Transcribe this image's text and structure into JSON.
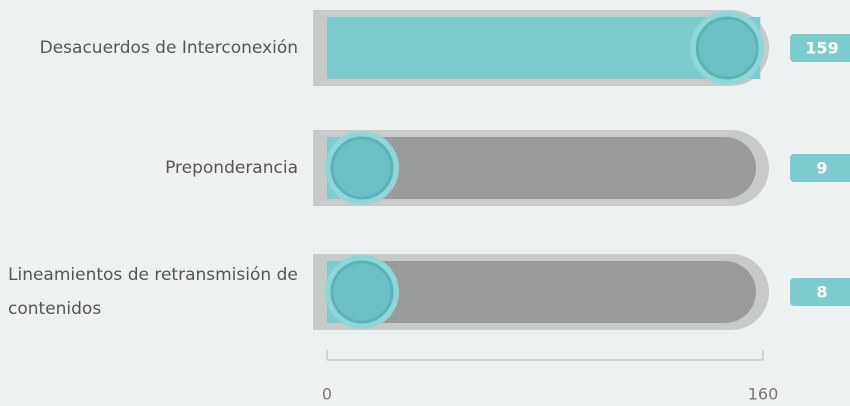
{
  "chart_data": {
    "type": "bar",
    "orientation": "horizontal",
    "categories": [
      "Desacuerdos de Interconexión",
      "Preponderancia",
      "Lineamientos de retransmisión de contenidos"
    ],
    "values": [
      159,
      9,
      8
    ],
    "color": "#7ccbcf",
    "xlim": [
      0,
      160
    ],
    "xticks": [
      0,
      160
    ]
  }
}
